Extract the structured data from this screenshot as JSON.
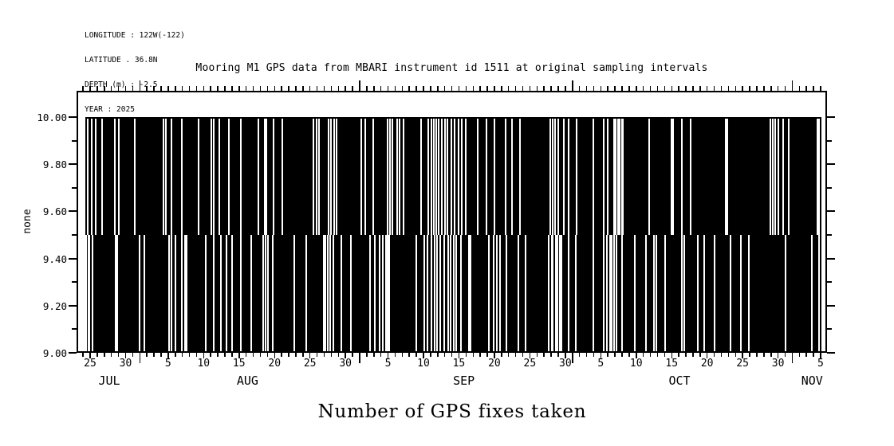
{
  "header": {
    "lines": [
      "LONGITUDE : 122W(-122)",
      "LATITUDE . 36.8N",
      "DEPTH (m) : -2.5",
      "YEAR : 2025"
    ]
  },
  "title": "Mooring M1 GPS data from MBARI instrument id 1511 at original sampling intervals",
  "bottom_title": "Number of GPS fixes taken",
  "colors": {
    "ink": "#000000",
    "background": "#ffffff"
  },
  "chart_data": {
    "type": "bar",
    "subtype": "high-density needle time series (value drawn as vertical strokes from baseline)",
    "title": "Mooring M1 GPS data from MBARI instrument id 1511 at original sampling intervals",
    "xlabel": "",
    "ylabel": "none",
    "ylim": [
      9.0,
      10.0
    ],
    "yticks_major": [
      9.0,
      9.2,
      9.4,
      9.6,
      9.8,
      10.0
    ],
    "yticks_minor": [
      9.1,
      9.3,
      9.5,
      9.7,
      9.9
    ],
    "x_axis": {
      "year": 2025,
      "start_date": "2025-07-23",
      "end_date": "2025-11-06",
      "day_offset_zero": "2025-07-25",
      "day_tick_range": [
        -2,
        103
      ],
      "month_start_days": [
        7,
        38,
        68,
        99
      ],
      "day_labels": [
        {
          "d": 0,
          "t": "25"
        },
        {
          "d": 5,
          "t": "30"
        },
        {
          "d": 11,
          "t": "5"
        },
        {
          "d": 16,
          "t": "10"
        },
        {
          "d": 21,
          "t": "15"
        },
        {
          "d": 26,
          "t": "20"
        },
        {
          "d": 31,
          "t": "25"
        },
        {
          "d": 36,
          "t": "30"
        },
        {
          "d": 42,
          "t": "5"
        },
        {
          "d": 47,
          "t": "10"
        },
        {
          "d": 52,
          "t": "15"
        },
        {
          "d": 57,
          "t": "20"
        },
        {
          "d": 62,
          "t": "25"
        },
        {
          "d": 67,
          "t": "30"
        },
        {
          "d": 72,
          "t": "5"
        },
        {
          "d": 77,
          "t": "10"
        },
        {
          "d": 82,
          "t": "15"
        },
        {
          "d": 87,
          "t": "20"
        },
        {
          "d": 92,
          "t": "25"
        },
        {
          "d": 97,
          "t": "30"
        },
        {
          "d": 103,
          "t": "5"
        }
      ],
      "month_labels": [
        {
          "d": 2.7,
          "t": "JUL"
        },
        {
          "d": 22.2,
          "t": "AUG"
        },
        {
          "d": 52.7,
          "t": "SEP"
        },
        {
          "d": 83.1,
          "t": "OCT"
        },
        {
          "d": 101.8,
          "t": "NOV"
        }
      ]
    },
    "values": {
      "high": 10.0,
      "dip": 9.5,
      "baseline": 9.0
    },
    "data_extent_days": [
      -0.67,
      103.1
    ],
    "gaps_top_days": [
      -0.34,
      0.22,
      0.79,
      1.69,
      3.49,
      4.05,
      6.3,
      10.34,
      10.68,
      11.47,
      12.93,
      15.29,
      17.09,
      17.43,
      18.22,
      19.57,
      21.25,
      23.73,
      24.63,
      24.85,
      25.86,
      27.1,
      31.49,
      31.94,
      32.27,
      33.62,
      33.96,
      34.41,
      34.75,
      38.23,
      38.8,
      39.92,
      41.94,
      42.28,
      42.62,
      43.29,
      43.63,
      44.19,
      46.67,
      47.68,
      48.13,
      48.47,
      48.8,
      49.14,
      49.59,
      50.04,
      50.38,
      50.94,
      51.39,
      51.95,
      52.4,
      52.96,
      54.65,
      55.89,
      57.01,
      58.59,
      59.49,
      60.61,
      64.88,
      65.22,
      65.56,
      66.01,
      66.79,
      67.47,
      68.59,
      70.95,
      72.42,
      72.98,
      73.88,
      74.1,
      74.44,
      74.66,
      [
        75.0,
        3
      ],
      78.83,
      81.97,
      82.2,
      83.43,
      84.67,
      89.62,
      89.85,
      95.92,
      96.26,
      96.59,
      97.04,
      97.72,
      98.5,
      102.55,
      102.78
    ],
    "gaps_bottom_days": [
      [
        -0.62,
        2
      ],
      [
        -0.22,
        3
      ],
      [
        0.34,
        2
      ],
      3.6,
      3.82,
      6.97,
      7.65,
      11.13,
      11.47,
      12.03,
      12.93,
      13.38,
      13.61,
      16.31,
      17.43,
      18.44,
      19.23,
      20.02,
      21.25,
      22.72,
      24.4,
      24.74,
      25.08,
      25.75,
      28.79,
      30.47,
      32.95,
      33.17,
      33.51,
      33.85,
      34.3,
      35.42,
      36.77,
      39.47,
      40.14,
      40.82,
      41.27,
      41.72,
      41.94,
      42.17,
      45.99,
      47.12,
      47.57,
      48.13,
      48.58,
      48.91,
      49.36,
      49.93,
      50.49,
      50.83,
      51.28,
      51.61,
      52.29,
      53.41,
      53.64,
      56.22,
      56.9,
      57.35,
      57.8,
      58.7,
      60.38,
      61.4,
      64.66,
      [
        65.11,
        3
      ],
      65.67,
      65.9,
      66.23,
      66.46,
      67.47,
      68.48,
      70.95,
      72.42,
      72.87,
      73.32,
      73.54,
      73.88,
      74.21,
      75.0,
      76.8,
      78.38,
      79.5,
      79.84,
      81.08,
      83.43,
      83.77,
      85.68,
      86.58,
      88.04,
      90.29,
      91.75,
      92.88,
      98.05,
      101.76,
      102.78
    ],
    "grid": false,
    "legend": false
  }
}
